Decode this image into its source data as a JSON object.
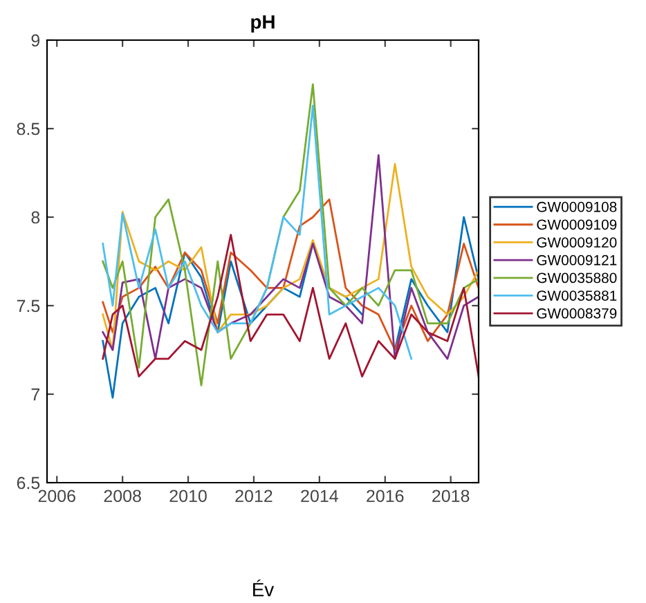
{
  "chart_data": {
    "type": "line",
    "title": "pH",
    "xlabel": "Év",
    "x": [
      2007.4,
      2007.7,
      2008.0,
      2008.5,
      2009.0,
      2009.4,
      2009.9,
      2010.4,
      2010.9,
      2011.3,
      2011.9,
      2012.4,
      2012.9,
      2013.4,
      2013.8,
      2014.3,
      2014.8,
      2015.3,
      2015.8,
      2016.3,
      2016.8,
      2017.3,
      2017.9,
      2018.4,
      2018.85
    ],
    "series": [
      {
        "name": "GW0009108",
        "color": "#0072bd",
        "values": [
          7.3,
          6.98,
          7.4,
          7.55,
          7.6,
          7.4,
          7.8,
          7.66,
          7.35,
          7.75,
          7.4,
          7.5,
          7.6,
          7.55,
          7.85,
          7.6,
          7.55,
          7.45,
          null,
          7.25,
          7.65,
          7.5,
          7.35,
          8.0,
          7.65
        ]
      },
      {
        "name": "GW0009109",
        "color": "#d95319",
        "values": [
          7.52,
          7.35,
          7.55,
          7.6,
          7.72,
          7.6,
          7.8,
          7.7,
          7.4,
          7.8,
          7.7,
          7.6,
          7.6,
          7.95,
          8.0,
          8.1,
          7.6,
          7.5,
          7.45,
          7.25,
          7.5,
          7.3,
          7.45,
          7.85,
          7.6
        ]
      },
      {
        "name": "GW0009120",
        "color": "#edb120",
        "values": [
          7.45,
          7.25,
          8.03,
          7.75,
          7.7,
          7.75,
          7.7,
          7.83,
          7.35,
          7.45,
          7.45,
          7.5,
          7.6,
          7.65,
          7.87,
          7.6,
          7.55,
          7.6,
          7.65,
          8.3,
          7.72,
          7.55,
          7.45,
          7.55,
          7.7
        ]
      },
      {
        "name": "GW0009121",
        "color": "#7e2f8e",
        "values": [
          7.35,
          7.25,
          7.63,
          7.65,
          7.2,
          7.6,
          7.65,
          7.6,
          7.35,
          7.4,
          7.45,
          7.55,
          7.65,
          7.6,
          7.85,
          7.55,
          7.5,
          7.4,
          8.35,
          7.2,
          7.6,
          7.35,
          7.2,
          7.5,
          7.55
        ]
      },
      {
        "name": "GW0035880",
        "color": "#77ac30",
        "values": [
          7.75,
          7.6,
          7.75,
          7.15,
          8.0,
          8.1,
          7.7,
          7.05,
          7.75,
          7.2,
          7.4,
          7.6,
          8.0,
          8.15,
          8.75,
          7.6,
          7.5,
          7.6,
          7.5,
          7.7,
          7.7,
          7.4,
          7.4,
          7.6,
          7.65
        ]
      },
      {
        "name": "GW0035881",
        "color": "#4dbeee",
        "values": [
          7.85,
          7.5,
          8.02,
          7.6,
          7.93,
          7.6,
          7.75,
          7.5,
          7.35,
          7.4,
          7.4,
          7.6,
          8.0,
          7.9,
          8.63,
          7.45,
          7.5,
          7.55,
          7.6,
          7.5,
          7.2,
          null,
          null,
          null,
          null
        ]
      },
      {
        "name": "GW0008379",
        "color": "#a2142f",
        "values": [
          7.2,
          7.45,
          7.5,
          7.1,
          7.2,
          7.2,
          7.3,
          7.25,
          7.55,
          7.9,
          7.3,
          7.45,
          7.45,
          7.3,
          7.6,
          7.2,
          7.4,
          7.1,
          7.3,
          7.2,
          7.45,
          7.35,
          7.3,
          7.6,
          7.1
        ]
      }
    ],
    "xlim": [
      2005.7,
      2018.85
    ],
    "xticks": [
      2006,
      2008,
      2010,
      2012,
      2014,
      2016,
      2018
    ],
    "ylim": [
      6.5,
      9
    ],
    "yticks": [
      6.5,
      7,
      7.5,
      8,
      8.5,
      9
    ],
    "grid": false,
    "legend": "right"
  }
}
